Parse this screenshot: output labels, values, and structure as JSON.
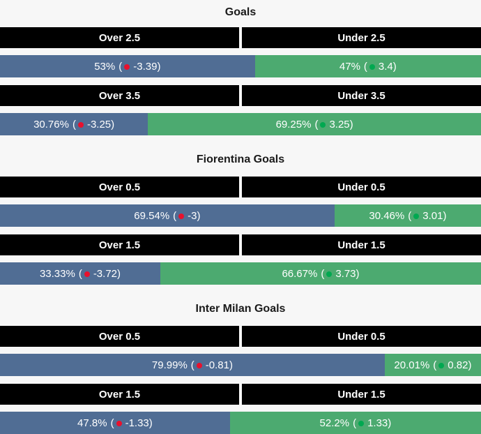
{
  "colors": {
    "over_bar": "#506d94",
    "under_bar": "#4caa70",
    "header_bg": "#000000",
    "negative_dot": "#e8112d",
    "positive_dot": "#00a850",
    "page_bg": "#f7f7f7"
  },
  "format": {
    "open_paren": "(",
    "close_paren": ")"
  },
  "chart_data": {
    "type": "bar",
    "subtype": "stacked-percentage-over-under",
    "legend_position": "none",
    "grid": false,
    "sections": [
      {
        "title": "Goals",
        "markets": [
          {
            "over_label": "Over 2.5",
            "under_label": "Under 2.5",
            "over_pct": 53,
            "over_pct_label": "53%",
            "over_odds": "-3.39",
            "under_pct": 47,
            "under_pct_label": "47%",
            "under_odds": "3.4"
          },
          {
            "over_label": "Over 3.5",
            "under_label": "Under 3.5",
            "over_pct": 30.76,
            "over_pct_label": "30.76%",
            "over_odds": "-3.25",
            "under_pct": 69.25,
            "under_pct_label": "69.25%",
            "under_odds": "3.25"
          }
        ]
      },
      {
        "title": "Fiorentina Goals",
        "markets": [
          {
            "over_label": "Over 0.5",
            "under_label": "Under 0.5",
            "over_pct": 69.54,
            "over_pct_label": "69.54%",
            "over_odds": "-3",
            "under_pct": 30.46,
            "under_pct_label": "30.46%",
            "under_odds": "3.01"
          },
          {
            "over_label": "Over 1.5",
            "under_label": "Under 1.5",
            "over_pct": 33.33,
            "over_pct_label": "33.33%",
            "over_odds": "-3.72",
            "under_pct": 66.67,
            "under_pct_label": "66.67%",
            "under_odds": "3.73"
          }
        ]
      },
      {
        "title": "Inter Milan Goals",
        "markets": [
          {
            "over_label": "Over 0.5",
            "under_label": "Under 0.5",
            "over_pct": 79.99,
            "over_pct_label": "79.99%",
            "over_odds": "-0.81",
            "under_pct": 20.01,
            "under_pct_label": "20.01%",
            "under_odds": "0.82"
          },
          {
            "over_label": "Over 1.5",
            "under_label": "Under 1.5",
            "over_pct": 47.8,
            "over_pct_label": "47.8%",
            "over_odds": "-1.33",
            "under_pct": 52.2,
            "under_pct_label": "52.2%",
            "under_odds": "1.33"
          }
        ]
      }
    ]
  }
}
